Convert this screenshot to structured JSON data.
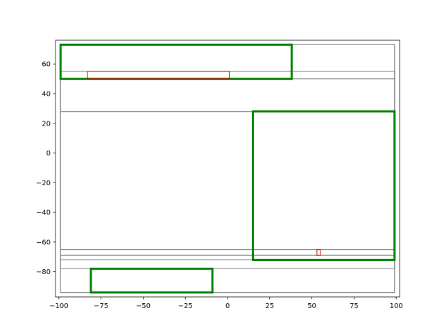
{
  "chart_data": {
    "type": "rectangles",
    "title": "",
    "xlabel": "",
    "ylabel": "",
    "xlim": [
      -102,
      102
    ],
    "ylim": [
      -97,
      76
    ],
    "x_ticks": [
      -100,
      -75,
      -50,
      -25,
      0,
      25,
      50,
      75,
      100
    ],
    "y_ticks": [
      -80,
      -60,
      -40,
      -20,
      0,
      20,
      40,
      60
    ],
    "grid": false,
    "legend": "none",
    "colors": {
      "gray": "#808080",
      "green": "#008000",
      "red": "#cc0000"
    },
    "series": [
      {
        "style": "gray",
        "rects": [
          {
            "x0": -99,
            "x1": 99,
            "y0": -94,
            "y1": 73
          },
          {
            "x0": -99,
            "x1": 99,
            "y0": 50,
            "y1": 55
          },
          {
            "x0": -99,
            "x1": 99,
            "y0": 28,
            "y1": 50
          },
          {
            "x0": -99,
            "x1": 99,
            "y0": -65,
            "y1": 28
          },
          {
            "x0": -99,
            "x1": 99,
            "y0": -69,
            "y1": -65
          },
          {
            "x0": -99,
            "x1": 99,
            "y0": -72,
            "y1": -69
          },
          {
            "x0": -99,
            "x1": 99,
            "y0": -78,
            "y1": -72
          }
        ]
      },
      {
        "style": "green",
        "rects": [
          {
            "x0": -99,
            "x1": 38,
            "y0": 50,
            "y1": 73
          },
          {
            "x0": 15,
            "x1": 99,
            "y0": -72,
            "y1": 28
          },
          {
            "x0": -81,
            "x1": -9,
            "y0": -94,
            "y1": -78
          }
        ]
      },
      {
        "style": "red",
        "rects": [
          {
            "x0": -83,
            "x1": 1,
            "y0": 50,
            "y1": 55
          },
          {
            "x0": 53,
            "x1": 55,
            "y0": -69,
            "y1": -65
          }
        ]
      }
    ]
  }
}
